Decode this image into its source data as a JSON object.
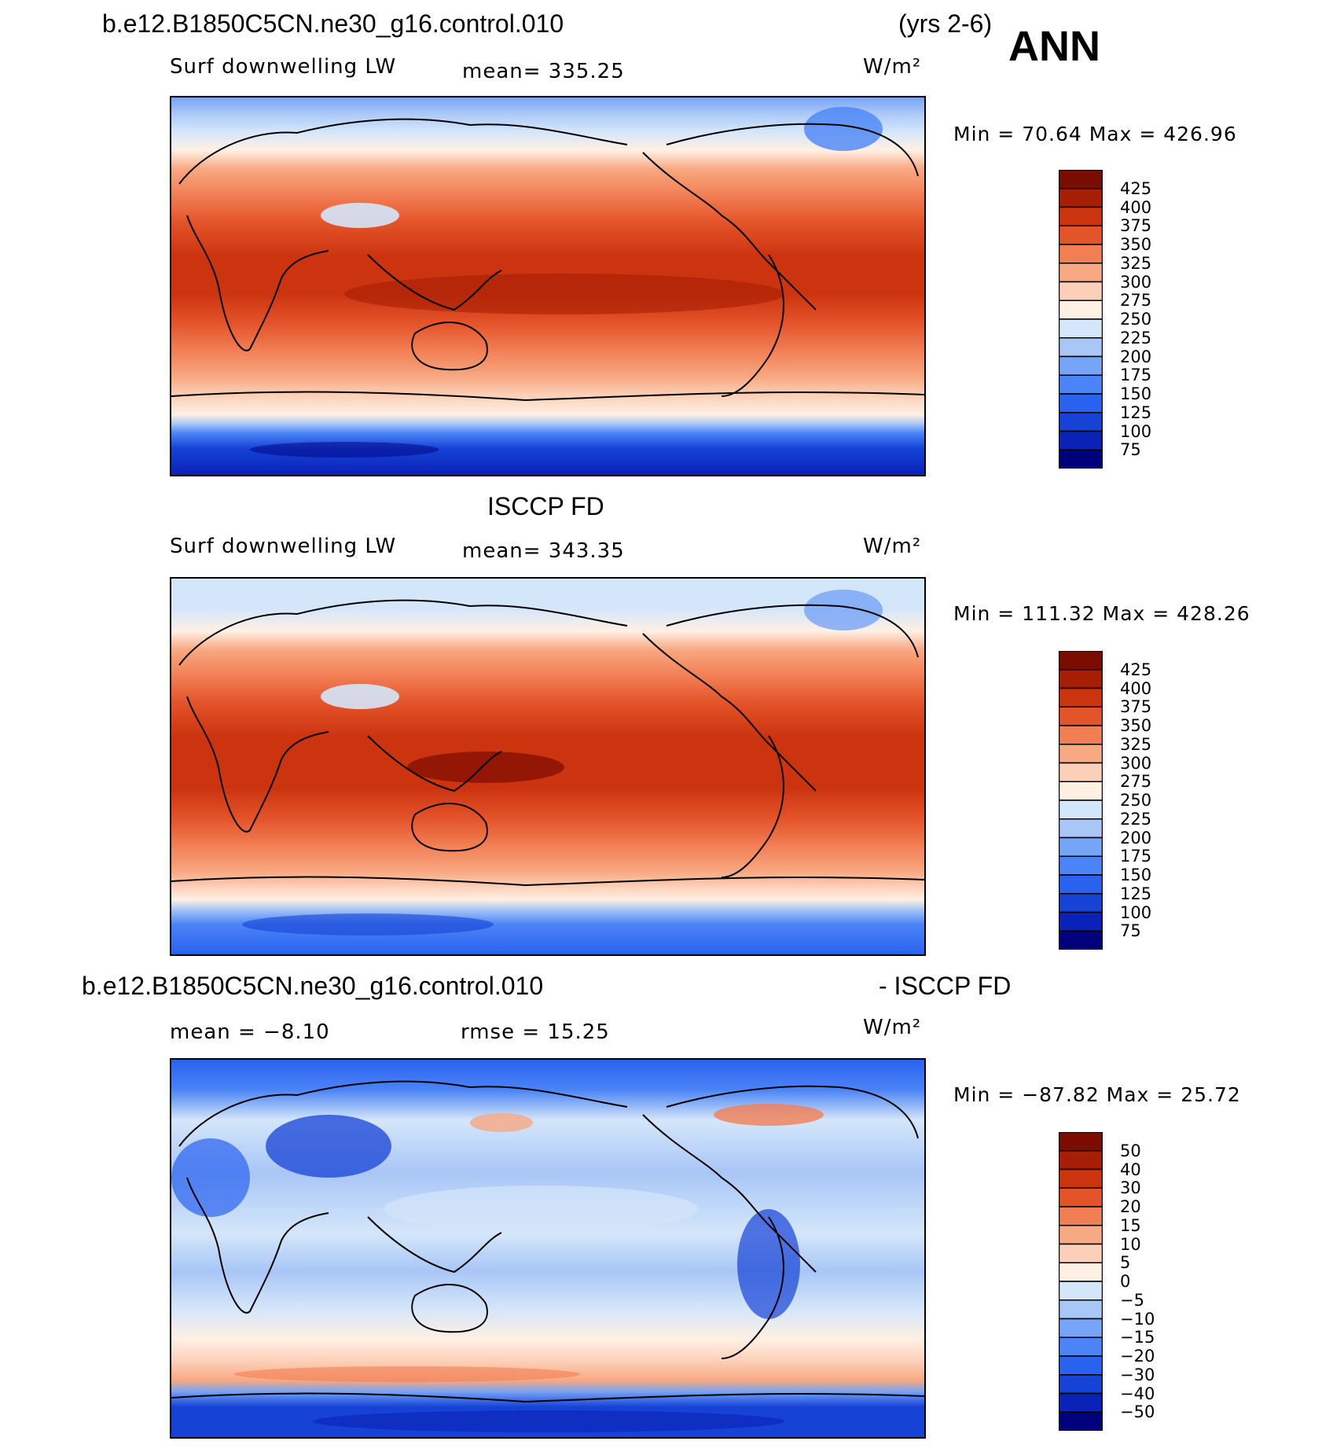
{
  "header": {
    "case_name": "b.e12.B1850C5CN.ne30_g16.control.010",
    "years": "(yrs 2-6)",
    "season": "ANN"
  },
  "panels": [
    {
      "id": "model",
      "variable": "Surf downwelling LW",
      "mean_label": "mean=  335.25",
      "units": "W/m²",
      "minmax": "Min =   70.64  Max = 426.96",
      "colorbar_ticks": [
        "425",
        "400",
        "375",
        "350",
        "325",
        "300",
        "275",
        "250",
        "225",
        "200",
        "175",
        "150",
        "125",
        "100",
        "75"
      ]
    },
    {
      "id": "obs",
      "title": "ISCCP FD",
      "variable": "Surf downwelling LW",
      "mean_label": "mean=  343.35",
      "units": "W/m²",
      "minmax": "Min = 111.32  Max = 428.26",
      "colorbar_ticks": [
        "425",
        "400",
        "375",
        "350",
        "325",
        "300",
        "275",
        "250",
        "225",
        "200",
        "175",
        "150",
        "125",
        "100",
        "75"
      ]
    },
    {
      "id": "diff",
      "title_left": "b.e12.B1850C5CN.ne30_g16.control.010",
      "title_right": "- ISCCP FD",
      "mean_label": "mean =   −8.10",
      "rmse_label": "rmse =   15.25",
      "units": "W/m²",
      "minmax": "Min = −87.82  Max =   25.72",
      "colorbar_ticks": [
        "50",
        "40",
        "30",
        "20",
        "15",
        "10",
        "5",
        "0",
        "−5",
        "−10",
        "−15",
        "−20",
        "−30",
        "−40",
        "−50"
      ]
    }
  ],
  "colors": {
    "field_scale": [
      "#00007c",
      "#0a22b8",
      "#1642d6",
      "#2a62f0",
      "#4a84f6",
      "#76a4f6",
      "#a8c6f6",
      "#d4e6fa",
      "#fff0e4",
      "#fcd0b8",
      "#f8a882",
      "#f27e54",
      "#e4542a",
      "#cc3410",
      "#a61e04",
      "#7a0c00"
    ],
    "diff_scale": [
      "#00007c",
      "#0a22b8",
      "#1642d6",
      "#2a62f0",
      "#4a84f6",
      "#76a4f6",
      "#a8c6f6",
      "#d4e6fa",
      "#fff0e4",
      "#fcd0b8",
      "#f8a882",
      "#f27e54",
      "#e4542a",
      "#cc3410",
      "#a61e04",
      "#7a0c00"
    ]
  }
}
